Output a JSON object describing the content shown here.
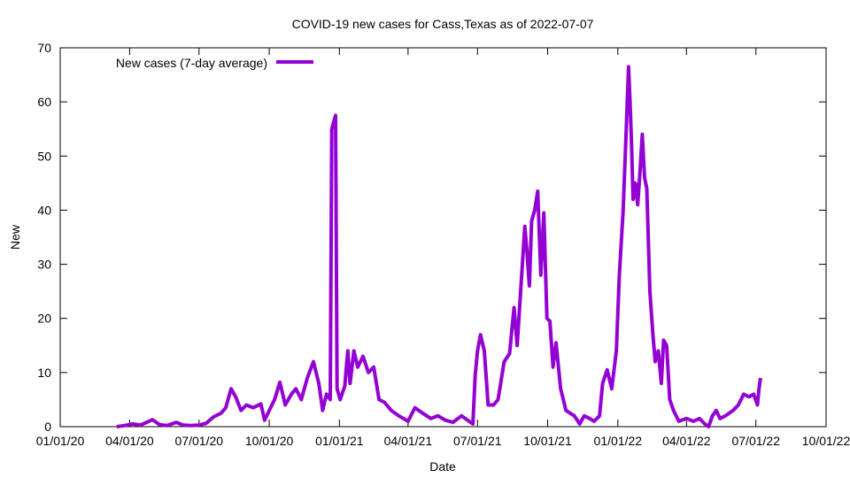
{
  "chart_data": {
    "type": "line",
    "title": "COVID-19 new cases for Cass,Texas as of 2022-07-07",
    "xlabel": "Date",
    "ylabel": "New",
    "legend": {
      "placement": "top-left",
      "entries": [
        "New cases (7-day average)"
      ]
    },
    "grid": false,
    "xlim": [
      "2020-01-01",
      "2022-10-01"
    ],
    "ylim": [
      0,
      70
    ],
    "x_ticks": [
      "01/01/20",
      "04/01/20",
      "07/01/20",
      "10/01/20",
      "01/01/21",
      "04/01/21",
      "07/01/21",
      "10/01/21",
      "01/01/22",
      "04/01/22",
      "07/01/22",
      "10/01/22"
    ],
    "y_ticks": [
      0,
      10,
      20,
      30,
      40,
      50,
      60,
      70
    ],
    "series": [
      {
        "name": "New cases (7-day average)",
        "color": "#9400d3",
        "points": [
          [
            "2020-03-15",
            0
          ],
          [
            "2020-03-25",
            0.2
          ],
          [
            "2020-04-05",
            0.5
          ],
          [
            "2020-04-15",
            0.3
          ],
          [
            "2020-04-25",
            0.9
          ],
          [
            "2020-05-01",
            1.3
          ],
          [
            "2020-05-10",
            0.4
          ],
          [
            "2020-05-20",
            0.2
          ],
          [
            "2020-06-01",
            0.8
          ],
          [
            "2020-06-10",
            0.3
          ],
          [
            "2020-06-20",
            0.2
          ],
          [
            "2020-07-01",
            0.3
          ],
          [
            "2020-07-10",
            0.6
          ],
          [
            "2020-07-20",
            1.8
          ],
          [
            "2020-07-30",
            2.5
          ],
          [
            "2020-08-05",
            3.5
          ],
          [
            "2020-08-12",
            7.0
          ],
          [
            "2020-08-18",
            5.5
          ],
          [
            "2020-08-25",
            3.0
          ],
          [
            "2020-09-01",
            4.0
          ],
          [
            "2020-09-10",
            3.5
          ],
          [
            "2020-09-20",
            4.2
          ],
          [
            "2020-09-25",
            1.2
          ],
          [
            "2020-10-01",
            3.0
          ],
          [
            "2020-10-08",
            5.0
          ],
          [
            "2020-10-15",
            8.2
          ],
          [
            "2020-10-22",
            4.0
          ],
          [
            "2020-10-30",
            6.0
          ],
          [
            "2020-11-05",
            7.0
          ],
          [
            "2020-11-12",
            5.0
          ],
          [
            "2020-11-20",
            9.0
          ],
          [
            "2020-11-28",
            12.0
          ],
          [
            "2020-12-05",
            8.0
          ],
          [
            "2020-12-10",
            3.0
          ],
          [
            "2020-12-15",
            6.0
          ],
          [
            "2020-12-20",
            5.0
          ],
          [
            "2020-12-22",
            55.0
          ],
          [
            "2020-12-24",
            56.0
          ],
          [
            "2020-12-27",
            57.5
          ],
          [
            "2020-12-29",
            7.0
          ],
          [
            "2021-01-02",
            5.0
          ],
          [
            "2021-01-08",
            7.5
          ],
          [
            "2021-01-12",
            14.0
          ],
          [
            "2021-01-15",
            8.0
          ],
          [
            "2021-01-20",
            14.0
          ],
          [
            "2021-01-25",
            11.0
          ],
          [
            "2021-02-01",
            13.0
          ],
          [
            "2021-02-08",
            10.0
          ],
          [
            "2021-02-15",
            11.0
          ],
          [
            "2021-02-22",
            5.0
          ],
          [
            "2021-03-01",
            4.5
          ],
          [
            "2021-03-10",
            3.0
          ],
          [
            "2021-03-20",
            2.0
          ],
          [
            "2021-04-01",
            1.0
          ],
          [
            "2021-04-10",
            3.5
          ],
          [
            "2021-04-20",
            2.5
          ],
          [
            "2021-05-01",
            1.5
          ],
          [
            "2021-05-10",
            2.0
          ],
          [
            "2021-05-20",
            1.2
          ],
          [
            "2021-05-30",
            0.8
          ],
          [
            "2021-06-10",
            2.0
          ],
          [
            "2021-06-20",
            1.0
          ],
          [
            "2021-06-25",
            0.5
          ],
          [
            "2021-06-28",
            9.5
          ],
          [
            "2021-07-01",
            14.0
          ],
          [
            "2021-07-05",
            17.0
          ],
          [
            "2021-07-10",
            14.0
          ],
          [
            "2021-07-15",
            4.0
          ],
          [
            "2021-07-22",
            4.0
          ],
          [
            "2021-07-28",
            5.0
          ],
          [
            "2021-08-05",
            12.0
          ],
          [
            "2021-08-12",
            13.5
          ],
          [
            "2021-08-18",
            22.0
          ],
          [
            "2021-08-22",
            15.0
          ],
          [
            "2021-08-28",
            28.0
          ],
          [
            "2021-09-01",
            37.0
          ],
          [
            "2021-09-04",
            32.0
          ],
          [
            "2021-09-07",
            26.0
          ],
          [
            "2021-09-10",
            38.0
          ],
          [
            "2021-09-14",
            40.0
          ],
          [
            "2021-09-18",
            43.5
          ],
          [
            "2021-09-22",
            28.0
          ],
          [
            "2021-09-26",
            39.5
          ],
          [
            "2021-09-30",
            20.0
          ],
          [
            "2021-10-04",
            19.5
          ],
          [
            "2021-10-08",
            11.0
          ],
          [
            "2021-10-12",
            15.5
          ],
          [
            "2021-10-18",
            7.0
          ],
          [
            "2021-10-25",
            3.0
          ],
          [
            "2021-11-05",
            2.0
          ],
          [
            "2021-11-12",
            0.5
          ],
          [
            "2021-11-18",
            2.0
          ],
          [
            "2021-11-25",
            1.5
          ],
          [
            "2021-12-01",
            1.0
          ],
          [
            "2021-12-08",
            2.0
          ],
          [
            "2021-12-12",
            8.0
          ],
          [
            "2021-12-18",
            10.5
          ],
          [
            "2021-12-24",
            7.0
          ],
          [
            "2021-12-30",
            14.0
          ],
          [
            "2022-01-03",
            28.0
          ],
          [
            "2022-01-08",
            40.0
          ],
          [
            "2022-01-12",
            55.0
          ],
          [
            "2022-01-15",
            66.5
          ],
          [
            "2022-01-17",
            60.0
          ],
          [
            "2022-01-19",
            52.0
          ],
          [
            "2022-01-21",
            42.0
          ],
          [
            "2022-01-24",
            45.0
          ],
          [
            "2022-01-27",
            41.0
          ],
          [
            "2022-01-30",
            47.0
          ],
          [
            "2022-02-02",
            54.0
          ],
          [
            "2022-02-05",
            46.0
          ],
          [
            "2022-02-08",
            44.0
          ],
          [
            "2022-02-12",
            25.0
          ],
          [
            "2022-02-16",
            17.0
          ],
          [
            "2022-02-19",
            12.0
          ],
          [
            "2022-02-23",
            14.0
          ],
          [
            "2022-02-27",
            8.0
          ],
          [
            "2022-03-02",
            16.0
          ],
          [
            "2022-03-06",
            15.0
          ],
          [
            "2022-03-10",
            5.0
          ],
          [
            "2022-03-15",
            3.0
          ],
          [
            "2022-03-22",
            1.0
          ],
          [
            "2022-04-01",
            1.5
          ],
          [
            "2022-04-10",
            1.0
          ],
          [
            "2022-04-18",
            1.5
          ],
          [
            "2022-04-25",
            0.5
          ],
          [
            "2022-04-30",
            0.0
          ],
          [
            "2022-05-05",
            2.0
          ],
          [
            "2022-05-10",
            3.0
          ],
          [
            "2022-05-15",
            1.5
          ],
          [
            "2022-05-22",
            2.0
          ],
          [
            "2022-06-01",
            3.0
          ],
          [
            "2022-06-08",
            4.0
          ],
          [
            "2022-06-15",
            6.0
          ],
          [
            "2022-06-22",
            5.5
          ],
          [
            "2022-06-28",
            6.0
          ],
          [
            "2022-07-03",
            4.0
          ],
          [
            "2022-07-05",
            7.0
          ],
          [
            "2022-07-07",
            9.0
          ]
        ]
      }
    ]
  }
}
